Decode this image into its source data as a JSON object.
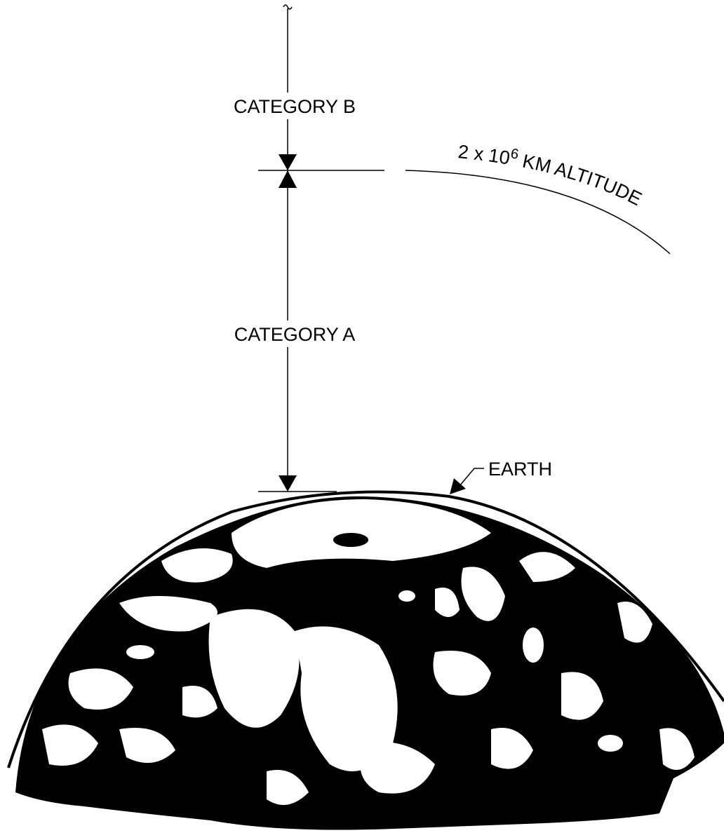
{
  "labels": {
    "category_b": "CATEGORY B",
    "category_a": "CATEGORY A",
    "altitude": {
      "prefix": "2 x 10",
      "exponent": "6",
      "suffix": " KM ALTITUDE"
    },
    "earth": "EARTH"
  }
}
